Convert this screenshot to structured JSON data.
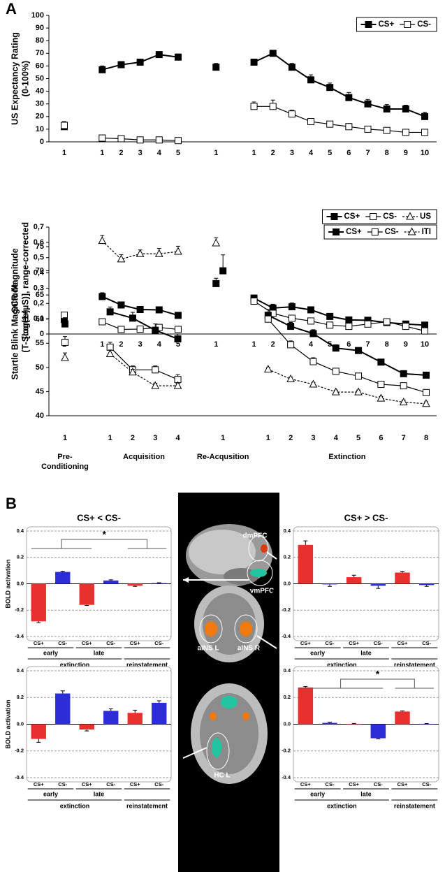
{
  "panel_labels": [
    "A",
    "B"
  ],
  "image_labels": [
    "dmPFC",
    "vmPFC",
    "aINS L",
    "aINS R",
    "HC L"
  ],
  "chart_data": [
    {
      "type": "line",
      "ylabel": [
        "US Expectancy Rating",
        "(0-100%)"
      ],
      "ylim": [
        0,
        100
      ],
      "yticks": [
        0,
        10,
        20,
        30,
        40,
        50,
        60,
        70,
        80,
        90,
        100
      ],
      "legend": "upper right",
      "categories": [
        [
          "1"
        ],
        [
          "1",
          "2",
          "3",
          "4",
          "5"
        ],
        [
          "1"
        ],
        [
          "1",
          "2",
          "3",
          "4",
          "5",
          "6",
          "7",
          "8",
          "9",
          "10"
        ]
      ],
      "series": [
        {
          "name": "CS+",
          "color": "#000000",
          "marker": "square-filled",
          "dash": false,
          "values": [
            [
              12
            ],
            [
              57,
              61,
              63,
              69,
              67
            ],
            [
              59
            ],
            [
              63,
              70,
              59,
              49,
              43,
              35,
              30,
              26,
              26,
              20
            ]
          ],
          "errors": [
            [
              2
            ],
            [
              3,
              2.5,
              2,
              2,
              2.5
            ],
            [
              3
            ],
            [
              2,
              2,
              3,
              4,
              3.5,
              4,
              3.5,
              3.5,
              3,
              3.5
            ]
          ]
        },
        {
          "name": "CS-",
          "color": "#000000",
          "marker": "square-open",
          "dash": false,
          "values": [
            [
              13
            ],
            [
              3,
              2.5,
              1.5,
              1.5,
              1
            ],
            [
              null
            ],
            [
              28,
              28,
              22,
              16,
              14,
              12,
              10,
              9,
              7.5,
              7.5
            ]
          ],
          "errors": [
            [
              3
            ],
            [
              1.5,
              1.5,
              1,
              1,
              1
            ],
            [
              null
            ],
            [
              3.5,
              5,
              3,
              2.5,
              2,
              2.5,
              1.5,
              2,
              1.5,
              1.5
            ]
          ]
        }
      ]
    },
    {
      "type": "line",
      "ylabel": [
        "SCR Magnitude",
        "[log(1+µS)], range-corrected"
      ],
      "ylim": [
        0,
        0.7
      ],
      "yticks": [
        0,
        {
          "value": 0.1,
          "label": "0,1"
        },
        {
          "value": 0.2,
          "label": "0,2"
        },
        {
          "value": 0.3,
          "label": "0,3"
        },
        {
          "value": 0.4,
          "label": "0,4"
        },
        {
          "value": 0.5,
          "label": "0,5"
        },
        {
          "value": 0.6,
          "label": "0,6"
        },
        {
          "value": 0.7,
          "label": "0,7"
        }
      ],
      "legend": "upper right",
      "categories": [
        [
          "1"
        ],
        [
          "1",
          "2",
          "3",
          "4",
          "5"
        ],
        [
          "1"
        ],
        [
          "1",
          "2",
          "3",
          "4",
          "5",
          "6",
          "7",
          "8",
          "9",
          "10"
        ]
      ],
      "series": [
        {
          "name": "CS+",
          "color": "#000000",
          "marker": "square-filled",
          "dash": false,
          "values": [
            [
              0.095
            ],
            [
              0.245,
              0.19,
              0.16,
              0.158,
              0.122
            ],
            [
              0.33
            ],
            [
              0.235,
              0.17,
              0.178,
              0.158,
              0.115,
              0.092,
              0.09,
              0.075,
              0.065,
              0.058
            ]
          ],
          "errors": [
            [
              0.015
            ],
            [
              0.025,
              0.02,
              0.015,
              0.02,
              0.015
            ],
            [
              0.035
            ],
            [
              0.02,
              0.025,
              0.025,
              0.02,
              0.012,
              0.012,
              0.01,
              0.015,
              0.015,
              0.015
            ]
          ]
        },
        {
          "name": "CS-",
          "color": "#000000",
          "marker": "square-open",
          "dash": false,
          "values": [
            [
              0.123
            ],
            [
              0.08,
              0.03,
              0.032,
              0.043,
              0.03
            ],
            [
              null
            ],
            [
              0.215,
              0.135,
              0.103,
              0.085,
              0.058,
              0.05,
              0.065,
              0.08,
              0.05,
              0.02
            ]
          ],
          "errors": [
            [
              0.015
            ],
            [
              0.01,
              0.005,
              0.005,
              0.005,
              0.005
            ],
            [
              null
            ],
            [
              0.02,
              0.01,
              0.01,
              0.01,
              0.01,
              0.01,
              0.01,
              0.01,
              0.01,
              0.012
            ]
          ]
        },
        {
          "name": "US",
          "color": "#000000",
          "marker": "triangle-open",
          "dash": true,
          "values": [
            [
              null
            ],
            [
              0.61,
              0.49,
              0.525,
              0.525,
              0.54
            ],
            [
              0.595
            ],
            [
              null,
              null,
              null,
              null,
              null,
              null,
              null,
              null,
              null,
              null
            ]
          ],
          "errors": [
            [
              null
            ],
            [
              0.035,
              0.03,
              0.025,
              0.035,
              0.035
            ],
            [
              0.035
            ],
            [
              null,
              null,
              null,
              null,
              null,
              null,
              null,
              null,
              null,
              null
            ]
          ]
        }
      ]
    },
    {
      "type": "line",
      "ylabel": [
        "Startle Blink Magnitude",
        "(T-Scores)"
      ],
      "ylim": [
        40,
        75
      ],
      "yticks": [
        40,
        45,
        50,
        55,
        60,
        65,
        70,
        75
      ],
      "legend": "upper right",
      "categories": [
        [
          "1"
        ],
        [
          "1",
          "2",
          "3",
          "4"
        ],
        [
          "1"
        ],
        [
          "1",
          "2",
          "3",
          "4",
          "5",
          "6",
          "7",
          "8"
        ]
      ],
      "groups": [
        "Pre-Conditioning",
        "Acquisition",
        "Re-Acqusition",
        "Extinction"
      ],
      "series": [
        {
          "name": "CS+",
          "color": "#000000",
          "marker": "square-filled",
          "dash": false,
          "values": [
            [
              59
            ],
            [
              61.5,
              60.2,
              57.7,
              55.9
            ],
            [
              70
            ],
            [
              60.8,
              58.5,
              57,
              54,
              53.5,
              51.1,
              48.7,
              48.4
            ]
          ],
          "errors": [
            [
              1.3
            ],
            [
              1,
              1.2,
              1.3,
              1
            ],
            [
              3.3
            ],
            [
              1.2,
              0.8,
              0.8,
              0.7,
              0.6,
              0.6,
              0.5,
              0.5
            ]
          ]
        },
        {
          "name": "CS-",
          "color": "#000000",
          "marker": "square-open",
          "dash": false,
          "values": [
            [
              55.2
            ],
            [
              54.2,
              49.5,
              49.5,
              47.5
            ],
            [
              null
            ],
            [
              60,
              54.7,
              51.2,
              49.2,
              48.2,
              46.5,
              46.2,
              44.8
            ]
          ],
          "errors": [
            [
              1.2
            ],
            [
              1,
              0.8,
              0.8,
              1
            ],
            [
              null
            ],
            [
              1,
              0.8,
              0.8,
              0.6,
              0.6,
              0.6,
              0.6,
              0.5
            ]
          ]
        },
        {
          "name": "ITI",
          "color": "#000000",
          "marker": "triangle-open",
          "dash": true,
          "values": [
            [
              52
            ],
            [
              52.8,
              49,
              46.2,
              46.2
            ],
            [
              null
            ],
            [
              49.6,
              47.6,
              46.5,
              44.9,
              44.9,
              43.6,
              42.8,
              42.5
            ]
          ],
          "errors": [
            [
              1
            ],
            [
              0.8,
              0.6,
              0.5,
              0.5
            ],
            [
              null
            ],
            [
              0.4,
              0.4,
              0.4,
              0.4,
              0.4,
              0.4,
              0.4,
              0.4
            ]
          ]
        }
      ]
    },
    {
      "type": "bar",
      "title": "CS+ < CS-",
      "ylabel": "BOLD activation",
      "ylim": [
        -0.4,
        0.4
      ],
      "yticks": [
        -0.4,
        -0.2,
        {
          "value": 0,
          "label": "0.0"
        },
        0.2,
        0.4
      ],
      "grid": true,
      "annotation": "*",
      "categories": [
        "CS+",
        "CS-",
        "CS+",
        "CS-",
        "CS+",
        "CS-"
      ],
      "subgroups": [
        "early",
        "late"
      ],
      "groups": [
        "extinction",
        "reinstatement"
      ],
      "colors": [
        "#e8312f",
        "#2c2cd8",
        "#e8312f",
        "#2c2cd8",
        "#e8312f",
        "#2c2cd8"
      ],
      "values": [
        -0.285,
        0.09,
        -0.16,
        0.025,
        -0.015,
        0.005
      ],
      "errors": [
        0.01,
        0.005,
        0.005,
        0.005,
        0.005,
        0.003
      ]
    },
    {
      "type": "bar",
      "title": "CS+ > CS-",
      "ylabel": "BOLD activation",
      "ylim": [
        -0.4,
        0.4
      ],
      "yticks": [
        -0.4,
        -0.2,
        {
          "value": 0,
          "label": "0.0"
        },
        0.2,
        0.4
      ],
      "grid": true,
      "categories": [
        "CS+",
        "CS-",
        "CS+",
        "CS-",
        "CS+",
        "CS-"
      ],
      "subgroups": [
        "early",
        "late"
      ],
      "groups": [
        "extinction",
        "reinstatement"
      ],
      "colors": [
        "#e8312f",
        "#2c2cd8",
        "#e8312f",
        "#2c2cd8",
        "#e8312f",
        "#2c2cd8"
      ],
      "values": [
        0.295,
        -0.005,
        0.05,
        -0.015,
        0.085,
        -0.01
      ],
      "errors": [
        0.03,
        0.015,
        0.015,
        0.02,
        0.01,
        0.01
      ]
    },
    {
      "type": "bar",
      "ylabel": "BOLD activation",
      "ylim": [
        -0.4,
        0.4
      ],
      "yticks": [
        -0.4,
        -0.2,
        {
          "value": 0,
          "label": "0.0"
        },
        0.2,
        0.4
      ],
      "grid": true,
      "categories": [
        "CS+",
        "CS-",
        "CS+",
        "CS-",
        "CS+",
        "CS-"
      ],
      "subgroups": [
        "early",
        "late"
      ],
      "groups": [
        "extinction",
        "reinstatement"
      ],
      "colors": [
        "#e8312f",
        "#2c2cd8",
        "#e8312f",
        "#2c2cd8",
        "#e8312f",
        "#2c2cd8"
      ],
      "values": [
        -0.11,
        0.23,
        -0.04,
        0.1,
        0.085,
        0.16
      ],
      "errors": [
        0.025,
        0.02,
        0.01,
        0.015,
        0.02,
        0.015
      ]
    },
    {
      "type": "bar",
      "ylabel": "BOLD activation",
      "ylim": [
        -0.4,
        0.4
      ],
      "yticks": [
        -0.4,
        -0.2,
        {
          "value": 0,
          "label": "0.0"
        },
        0.2,
        0.4
      ],
      "grid": true,
      "annotation": "*",
      "categories": [
        "CS+",
        "CS-",
        "CS+",
        "CS-",
        "CS+",
        "CS-"
      ],
      "subgroups": [
        "early",
        "late"
      ],
      "groups": [
        "extinction",
        "reinstatement"
      ],
      "colors": [
        "#e8312f",
        "#2c2cd8",
        "#e8312f",
        "#2c2cd8",
        "#e8312f",
        "#2c2cd8"
      ],
      "values": [
        0.275,
        0.01,
        0.003,
        -0.105,
        0.095,
        0.003
      ],
      "errors": [
        0.007,
        0.005,
        0.003,
        0.005,
        0.005,
        0.002
      ]
    }
  ]
}
